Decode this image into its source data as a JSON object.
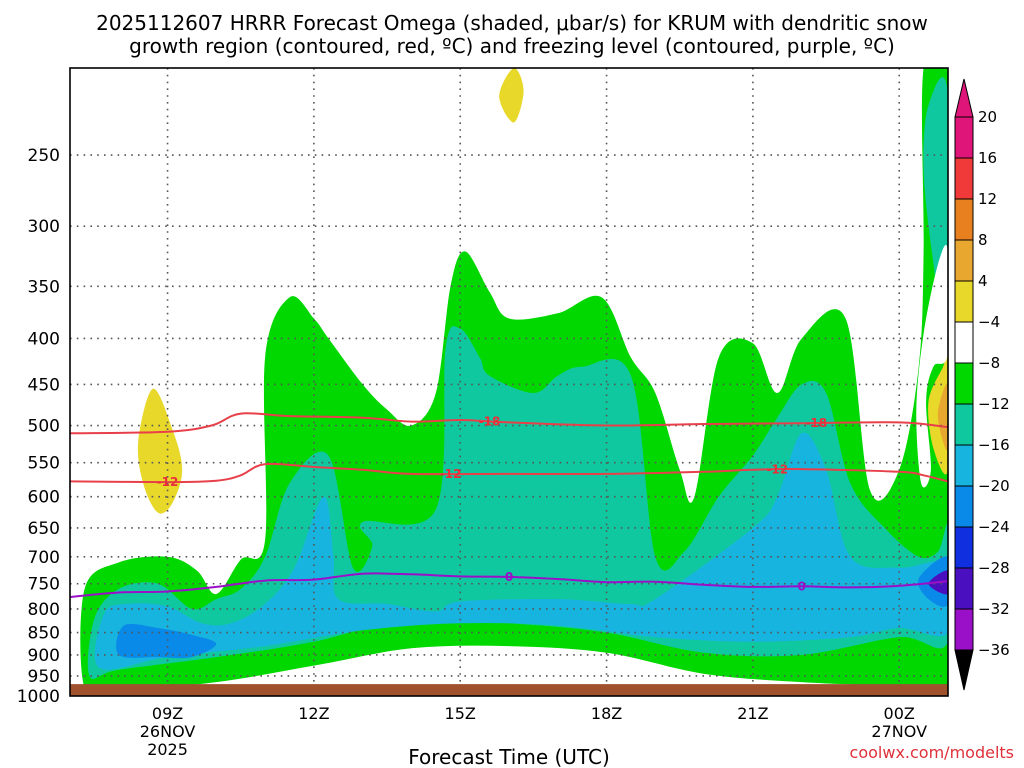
{
  "title": {
    "line1": "2025112607 HRRR Forecast Omega (shaded, μbar/s) for KRUM with dendritic snow",
    "line2": "growth region (contoured, red, ºC) and freezing level (contoured, purple, ºC)"
  },
  "credit": "coolwx.com/modelts",
  "colors": {
    "ground": "#a0522d",
    "dendritic_contour": "#e8404a",
    "freezing_contour": "#9a10c8",
    "gridline": "#555555"
  },
  "chart_data": {
    "type": "heatmap",
    "xlabel": "Forecast Time (UTC)",
    "ylabel": "",
    "x_range_hours_utc": [
      7.0,
      25.0
    ],
    "x_ticks": [
      {
        "hour": 9,
        "label": "09Z",
        "sub": [
          "26NOV",
          "2025"
        ]
      },
      {
        "hour": 12,
        "label": "12Z",
        "sub": []
      },
      {
        "hour": 15,
        "label": "15Z",
        "sub": []
      },
      {
        "hour": 18,
        "label": "18Z",
        "sub": []
      },
      {
        "hour": 21,
        "label": "21Z",
        "sub": []
      },
      {
        "hour": 24,
        "label": "00Z",
        "sub": [
          "27NOV"
        ]
      }
    ],
    "y_axis": {
      "scale": "log-pressure",
      "units": "hPa",
      "range": [
        1000,
        200
      ],
      "reversed": true
    },
    "y_ticks": [
      250,
      300,
      350,
      400,
      450,
      500,
      550,
      600,
      650,
      700,
      750,
      800,
      850,
      900,
      950,
      1000
    ],
    "grid": true,
    "colorbar": {
      "units": "μbar/s",
      "levels": [
        -36,
        -32,
        -28,
        -24,
        -20,
        -16,
        -12,
        -8,
        -4,
        4,
        8,
        12,
        16,
        20
      ],
      "colors": [
        "#a0a0a0",
        "#9a10c8",
        "#4a10c0",
        "#1030e0",
        "#0a8ae8",
        "#18b4e0",
        "#10c8a0",
        "#00d800",
        "#ffffff",
        "#e8d82a",
        "#e8a830",
        "#e88020",
        "#f03a3a",
        "#e0157a"
      ],
      "tick_labels": [
        "20",
        "16",
        "12",
        "8",
        "4",
        "−4",
        "−8",
        "−12",
        "−16",
        "−20",
        "−24",
        "−28",
        "−32",
        "−36"
      ],
      "extend": "both"
    },
    "contours": {
      "dendritic_snow_growth": [
        {
          "label": "-18",
          "points": [
            [
              7.0,
              510
            ],
            [
              9.0,
              508
            ],
            [
              9.9,
              500
            ],
            [
              10.5,
              485
            ],
            [
              11.5,
              488
            ],
            [
              13.0,
              490
            ],
            [
              14.0,
              495
            ],
            [
              15.0,
              493
            ],
            [
              16.0,
              496
            ],
            [
              18.0,
              500
            ],
            [
              20.0,
              498
            ],
            [
              22.0,
              497
            ],
            [
              24.0,
              496
            ],
            [
              25.0,
              502
            ]
          ]
        },
        {
          "label": "-12",
          "points": [
            [
              7.0,
              577
            ],
            [
              9.0,
              578
            ],
            [
              10.0,
              576
            ],
            [
              10.5,
              568
            ],
            [
              11.0,
              552
            ],
            [
              12.0,
              556
            ],
            [
              13.0,
              560
            ],
            [
              14.0,
              566
            ],
            [
              16.0,
              566
            ],
            [
              18.0,
              566
            ],
            [
              20.0,
              563
            ],
            [
              21.0,
              560
            ],
            [
              22.0,
              559
            ],
            [
              24.0,
              563
            ],
            [
              24.5,
              568
            ],
            [
              25.0,
              577
            ]
          ]
        }
      ],
      "freezing_level": [
        {
          "label": "0",
          "points": [
            [
              7.0,
              776
            ],
            [
              8.0,
              767
            ],
            [
              9.0,
              765
            ],
            [
              10.0,
              756
            ],
            [
              11.0,
              744
            ],
            [
              12.0,
              742
            ],
            [
              13.0,
              731
            ],
            [
              14.0,
              732
            ],
            [
              15.0,
              736
            ],
            [
              16.0,
              737
            ],
            [
              17.0,
              741
            ],
            [
              18.0,
              747
            ],
            [
              19.0,
              746
            ],
            [
              20.0,
              752
            ],
            [
              21.0,
              756
            ],
            [
              22.0,
              755
            ],
            [
              23.0,
              757
            ],
            [
              24.0,
              754
            ],
            [
              25.0,
              745
            ]
          ]
        }
      ]
    },
    "omega_regions": [
      {
        "level": -8,
        "color": "#00d800",
        "points": [
          [
            7.3,
            980
          ],
          [
            7.3,
            760
          ],
          [
            8.0,
            710
          ],
          [
            9.0,
            700
          ],
          [
            9.6,
            725
          ],
          [
            10.0,
            770
          ],
          [
            10.5,
            705
          ],
          [
            11.0,
            670
          ],
          [
            11.0,
            420
          ],
          [
            11.5,
            360
          ],
          [
            12.0,
            380
          ],
          [
            12.3,
            400
          ],
          [
            13.0,
            450
          ],
          [
            13.5,
            480
          ],
          [
            14.0,
            500
          ],
          [
            14.5,
            460
          ],
          [
            14.8,
            350
          ],
          [
            15.1,
            320
          ],
          [
            15.6,
            355
          ],
          [
            16.0,
            380
          ],
          [
            17.0,
            375
          ],
          [
            17.9,
            360
          ],
          [
            18.5,
            420
          ],
          [
            19.0,
            460
          ],
          [
            19.5,
            560
          ],
          [
            19.8,
            600
          ],
          [
            20.3,
            420
          ],
          [
            21.0,
            405
          ],
          [
            21.5,
            460
          ],
          [
            22.0,
            400
          ],
          [
            22.9,
            380
          ],
          [
            23.4,
            590
          ],
          [
            24.0,
            560
          ],
          [
            24.4,
            430
          ],
          [
            24.5,
            320
          ],
          [
            24.5,
            200
          ],
          [
            25.0,
            200
          ],
          [
            25.0,
            980
          ],
          [
            24.0,
            975
          ],
          [
            22.0,
            965
          ],
          [
            20.0,
            945
          ],
          [
            18.0,
            895
          ],
          [
            16.0,
            880
          ],
          [
            14.0,
            885
          ],
          [
            12.0,
            925
          ],
          [
            10.0,
            965
          ],
          [
            8.0,
            985
          ]
        ]
      },
      {
        "level": -12,
        "color": "#10c8a0",
        "points": [
          [
            7.4,
            950
          ],
          [
            7.5,
            820
          ],
          [
            8.0,
            760
          ],
          [
            8.8,
            750
          ],
          [
            9.5,
            800
          ],
          [
            10.0,
            780
          ],
          [
            10.5,
            760
          ],
          [
            11.0,
            700
          ],
          [
            11.5,
            580
          ],
          [
            12.3,
            540
          ],
          [
            12.8,
            720
          ],
          [
            13.2,
            680
          ],
          [
            13.0,
            640
          ],
          [
            14.5,
            620
          ],
          [
            14.7,
            410
          ],
          [
            15.0,
            390
          ],
          [
            15.4,
            420
          ],
          [
            15.6,
            440
          ],
          [
            16.5,
            460
          ],
          [
            17.0,
            440
          ],
          [
            17.5,
            430
          ],
          [
            18.5,
            440
          ],
          [
            19.0,
            700
          ],
          [
            19.6,
            690
          ],
          [
            20.3,
            600
          ],
          [
            21.0,
            540
          ],
          [
            21.5,
            490
          ],
          [
            22.0,
            450
          ],
          [
            22.5,
            460
          ],
          [
            23.0,
            580
          ],
          [
            23.7,
            650
          ],
          [
            24.4,
            700
          ],
          [
            24.8,
            690
          ],
          [
            25.0,
            650
          ],
          [
            25.0,
            870
          ],
          [
            24.0,
            860
          ],
          [
            22.0,
            900
          ],
          [
            20.0,
            895
          ],
          [
            18.0,
            850
          ],
          [
            16.0,
            830
          ],
          [
            14.0,
            820
          ],
          [
            12.0,
            870
          ],
          [
            10.0,
            905
          ],
          [
            8.0,
            935
          ]
        ]
      },
      {
        "level": -12,
        "color": "#10c8a0",
        "points": [
          [
            24.6,
            220
          ],
          [
            25.0,
            215
          ],
          [
            25.0,
            420
          ],
          [
            24.7,
            330
          ],
          [
            24.5,
            260
          ]
        ]
      },
      {
        "level": -16,
        "color": "#18b4e0",
        "points": [
          [
            7.6,
            930
          ],
          [
            7.7,
            810
          ],
          [
            8.2,
            790
          ],
          [
            9.0,
            795
          ],
          [
            9.7,
            830
          ],
          [
            10.3,
            830
          ],
          [
            11.0,
            790
          ],
          [
            11.6,
            720
          ],
          [
            12.2,
            600
          ],
          [
            12.4,
            700
          ],
          [
            12.5,
            780
          ],
          [
            13.5,
            790
          ],
          [
            14.5,
            805
          ],
          [
            15.0,
            785
          ],
          [
            17.0,
            780
          ],
          [
            18.5,
            790
          ],
          [
            19.0,
            780
          ],
          [
            21.0,
            650
          ],
          [
            21.5,
            600
          ],
          [
            22.0,
            510
          ],
          [
            22.5,
            560
          ],
          [
            23.0,
            700
          ],
          [
            24.0,
            720
          ],
          [
            25.0,
            715
          ],
          [
            25.0,
            850
          ],
          [
            24.0,
            840
          ],
          [
            23.0,
            860
          ],
          [
            21.0,
            870
          ],
          [
            19.0,
            860
          ],
          [
            17.0,
            835
          ],
          [
            15.0,
            830
          ],
          [
            13.0,
            845
          ],
          [
            11.0,
            880
          ],
          [
            9.0,
            905
          ]
        ]
      },
      {
        "level": -20,
        "color": "#0a8ae8",
        "points": [
          [
            8.0,
            900
          ],
          [
            8.1,
            835
          ],
          [
            8.8,
            840
          ],
          [
            9.5,
            855
          ],
          [
            10.0,
            875
          ],
          [
            9.5,
            905
          ],
          [
            8.8,
            905
          ]
        ]
      },
      {
        "level": -20,
        "color": "#0a8ae8",
        "points": [
          [
            24.4,
            740
          ],
          [
            25.0,
            700
          ],
          [
            25.0,
            790
          ],
          [
            24.6,
            780
          ]
        ]
      },
      {
        "level": -24,
        "color": "#4a10c0",
        "points": [
          [
            24.6,
            750
          ],
          [
            25.0,
            725
          ],
          [
            25.0,
            770
          ]
        ]
      },
      {
        "level": 4,
        "color": "#e8d82a",
        "points": [
          [
            8.5,
            580
          ],
          [
            8.4,
            520
          ],
          [
            8.7,
            455
          ],
          [
            9.1,
            505
          ],
          [
            9.3,
            560
          ],
          [
            9.1,
            610
          ],
          [
            8.8,
            625
          ]
        ]
      },
      {
        "level": 4,
        "color": "#e8d82a",
        "points": [
          [
            15.8,
            215
          ],
          [
            16.1,
            200
          ],
          [
            16.3,
            212
          ],
          [
            16.1,
            230
          ]
        ]
      },
      {
        "level": 4,
        "color": "#e8d82a",
        "points": [
          [
            24.6,
            470
          ],
          [
            24.9,
            430
          ],
          [
            25.0,
            420
          ],
          [
            25.0,
            560
          ],
          [
            24.7,
            530
          ]
        ]
      },
      {
        "level": 8,
        "color": "#e8a830",
        "points": [
          [
            24.8,
            480
          ],
          [
            25.0,
            450
          ],
          [
            25.0,
            530
          ],
          [
            24.85,
            510
          ]
        ]
      },
      {
        "level": -4,
        "color": "#ffffff",
        "points": [
          [
            24.35,
            480
          ],
          [
            24.5,
            395
          ],
          [
            24.8,
            330
          ],
          [
            25.0,
            320
          ],
          [
            25.0,
            415
          ],
          [
            24.7,
            430
          ],
          [
            24.55,
            470
          ],
          [
            24.65,
            560
          ],
          [
            24.45,
            580
          ]
        ]
      }
    ],
    "ground_pressure_hpa": 970
  }
}
